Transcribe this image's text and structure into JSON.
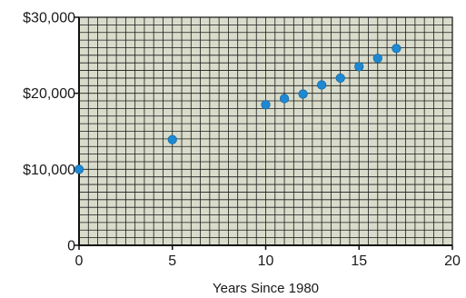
{
  "chart_data": {
    "type": "scatter",
    "title": "",
    "xlabel": "Years Since 1980",
    "ylabel": "",
    "xlim": [
      0,
      20
    ],
    "ylim": [
      0,
      30000
    ],
    "x_ticks": [
      0,
      5,
      10,
      15,
      20
    ],
    "x_tick_labels": [
      "0",
      "5",
      "10",
      "15",
      "20"
    ],
    "y_ticks": [
      0,
      10000,
      20000,
      30000
    ],
    "y_tick_labels": [
      "0",
      "$10,000",
      "$20,000",
      "$30,000"
    ],
    "grid": true,
    "grid_x_step": 0.5,
    "grid_y_step": 1000,
    "colors": {
      "background": "#d9dccb",
      "grid": "#1a1a1a",
      "point": "#1e88d2",
      "axis": "#111111"
    },
    "series": [
      {
        "points": [
          {
            "x": 0,
            "y": 10000
          },
          {
            "x": 5,
            "y": 13900
          },
          {
            "x": 10,
            "y": 18500
          },
          {
            "x": 11,
            "y": 19300
          },
          {
            "x": 12,
            "y": 19900
          },
          {
            "x": 13,
            "y": 21100
          },
          {
            "x": 14,
            "y": 22000
          },
          {
            "x": 15,
            "y": 23500
          },
          {
            "x": 16,
            "y": 24600
          },
          {
            "x": 17,
            "y": 25900
          }
        ]
      }
    ]
  }
}
